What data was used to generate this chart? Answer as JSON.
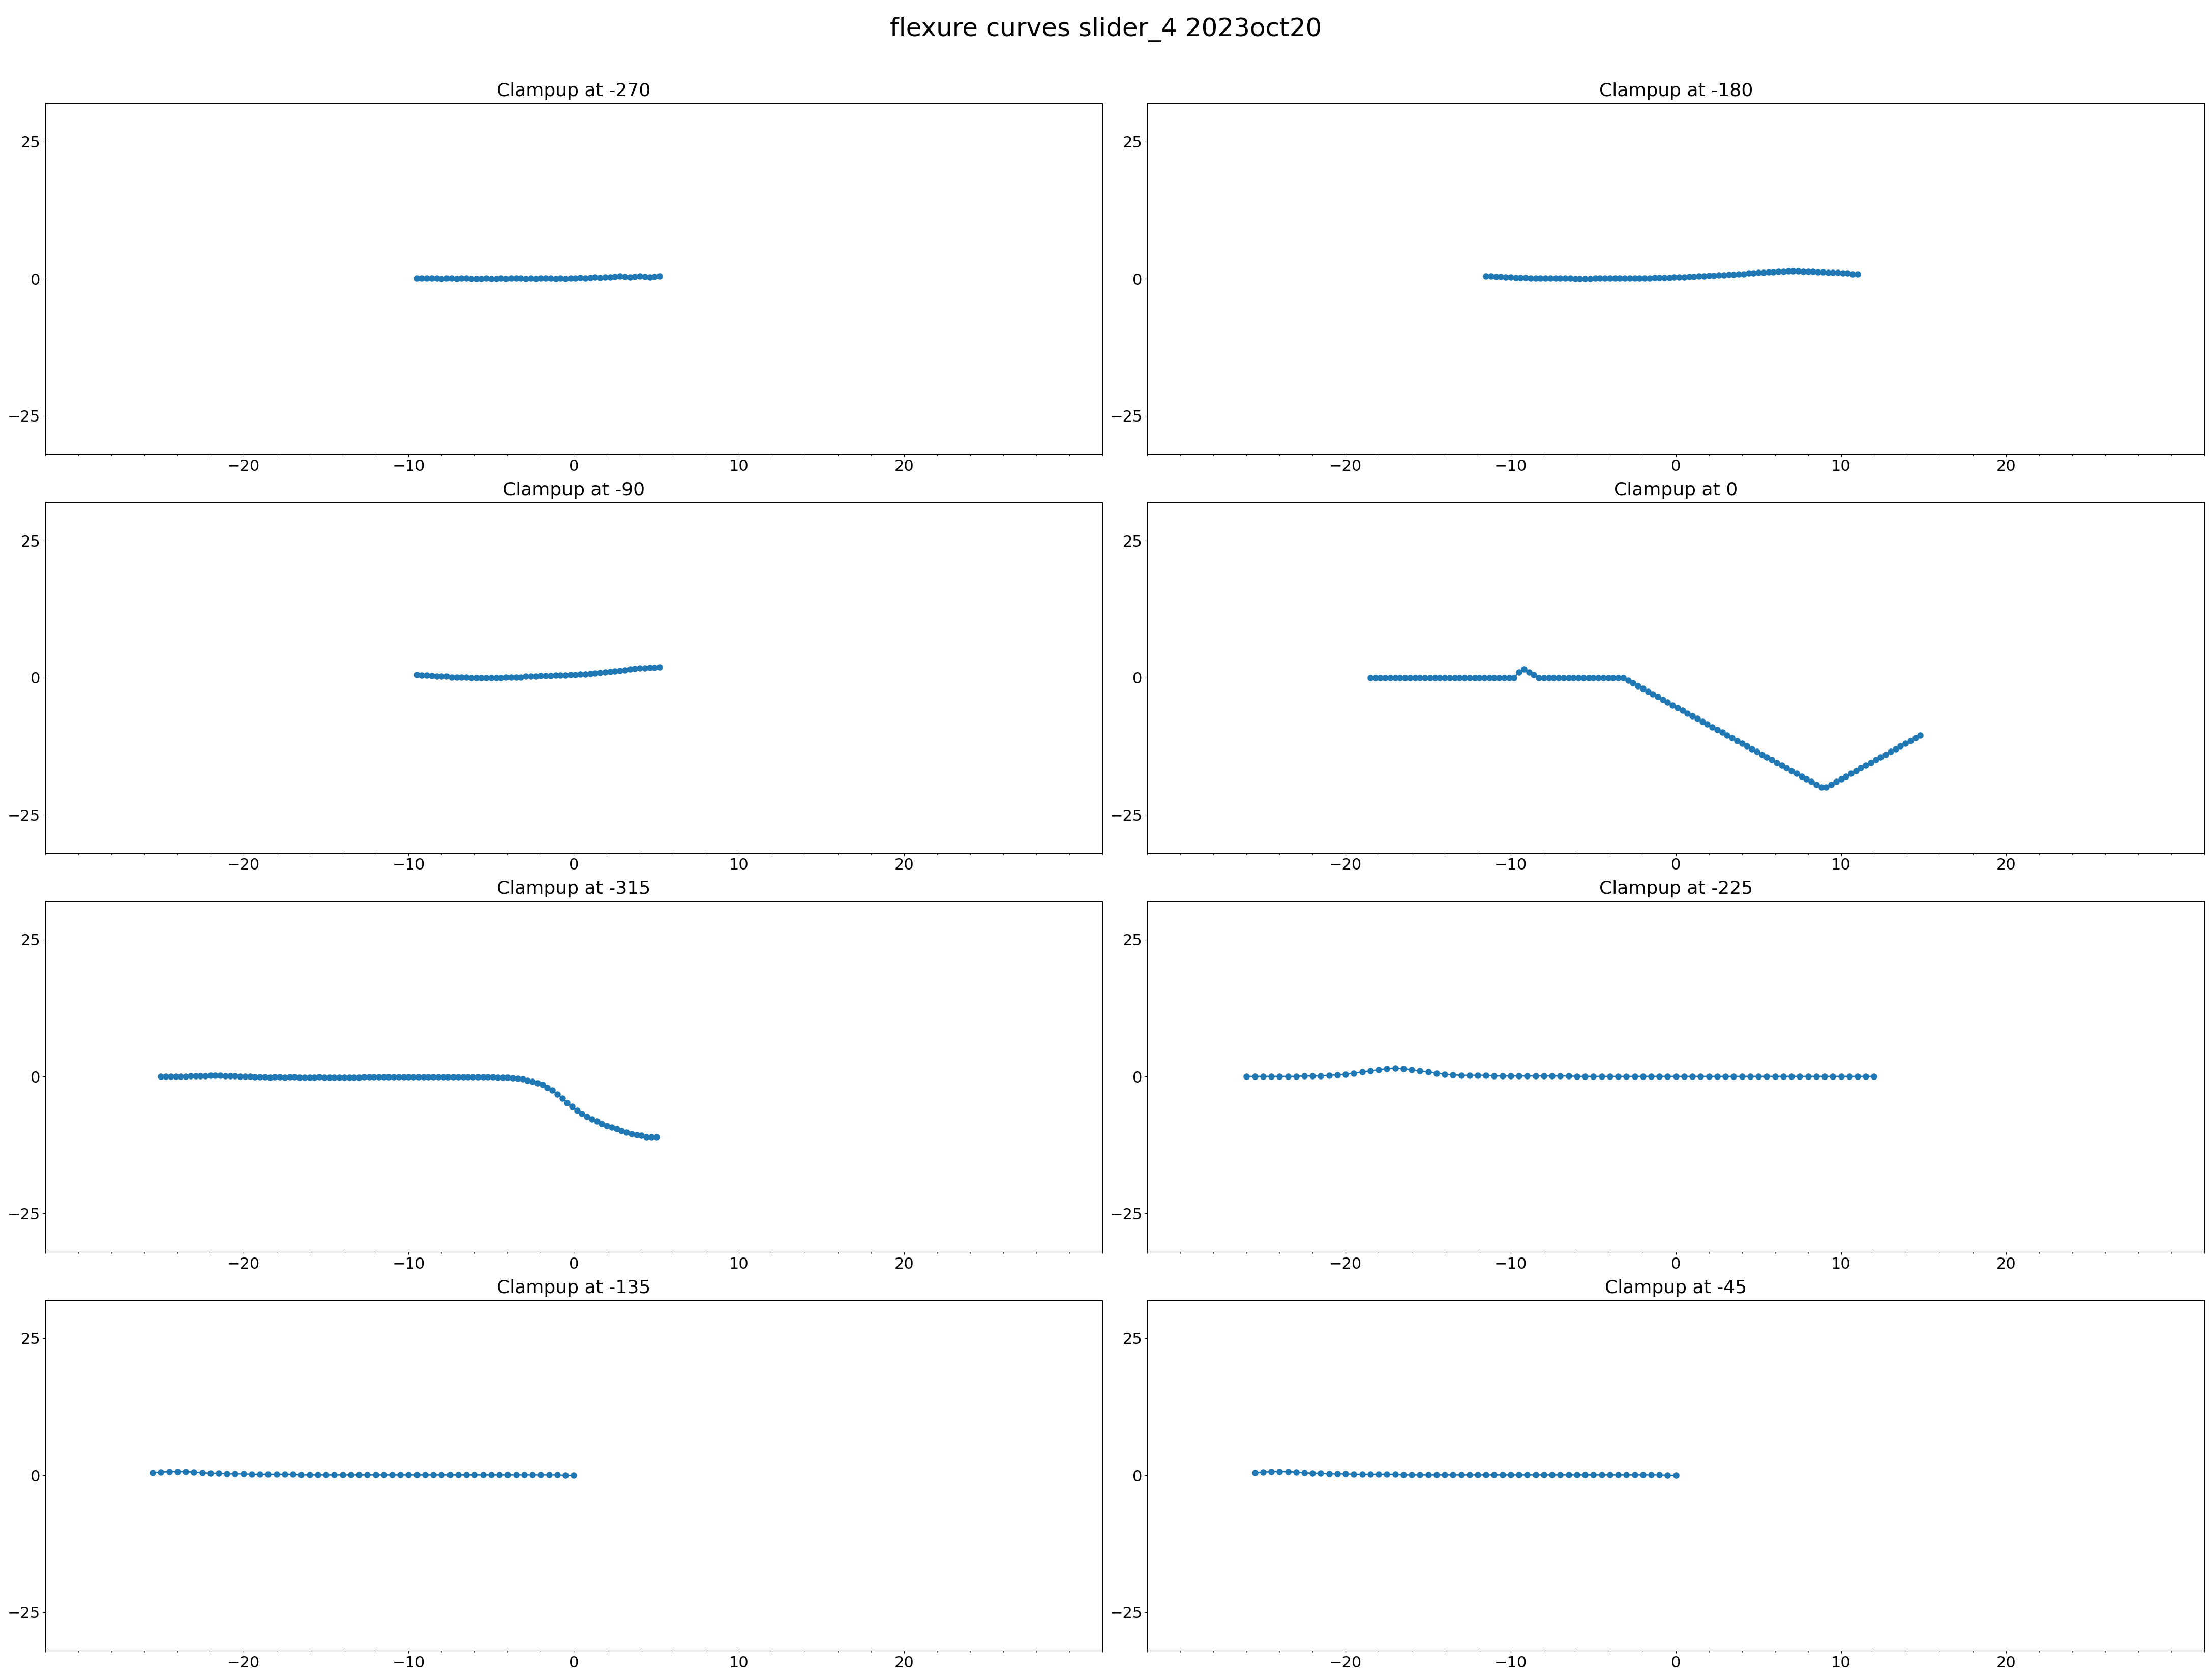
{
  "title": "flexure curves slider_4 2023oct20",
  "title_fontsize": 36,
  "subplot_title_fontsize": 26,
  "tick_fontsize": 22,
  "color": "#1f77b4",
  "xlim": [
    -32,
    32
  ],
  "ylim": [
    -32,
    32
  ],
  "xticks": [
    -20,
    -10,
    0,
    10,
    20
  ],
  "yticks": [
    -25,
    0,
    25
  ],
  "markersize": 8,
  "linewidth": 2.0,
  "subplots": [
    {
      "title": "Clampup at -270",
      "x": [
        -9.5,
        -9.2,
        -8.9,
        -8.6,
        -8.3,
        -8.0,
        -7.7,
        -7.4,
        -7.1,
        -6.8,
        -6.5,
        -6.2,
        -5.9,
        -5.6,
        -5.3,
        -5.0,
        -4.7,
        -4.4,
        -4.1,
        -3.8,
        -3.5,
        -3.2,
        -2.9,
        -2.6,
        -2.3,
        -2.0,
        -1.7,
        -1.4,
        -1.1,
        -0.8,
        -0.5,
        -0.2,
        0.1,
        0.4,
        0.7,
        1.0,
        1.3,
        1.6,
        1.9,
        2.2,
        2.5,
        2.8,
        3.1,
        3.4,
        3.7,
        4.0,
        4.3,
        4.6,
        4.9,
        5.2
      ],
      "y": [
        0.1,
        0.1,
        0.1,
        0.1,
        0.1,
        0.0,
        0.1,
        0.1,
        0.0,
        0.1,
        0.1,
        0.0,
        0.0,
        0.0,
        0.1,
        0.0,
        0.0,
        0.1,
        0.0,
        0.1,
        0.1,
        0.1,
        0.0,
        0.1,
        0.0,
        0.1,
        0.1,
        0.1,
        0.0,
        0.1,
        0.0,
        0.1,
        0.1,
        0.2,
        0.1,
        0.2,
        0.3,
        0.2,
        0.3,
        0.3,
        0.4,
        0.5,
        0.4,
        0.3,
        0.4,
        0.5,
        0.4,
        0.3,
        0.4,
        0.5
      ]
    },
    {
      "title": "Clampup at -180",
      "x": [
        -11.5,
        -11.2,
        -10.9,
        -10.6,
        -10.3,
        -10.0,
        -9.7,
        -9.4,
        -9.1,
        -8.8,
        -8.5,
        -8.2,
        -7.9,
        -7.6,
        -7.3,
        -7.0,
        -6.7,
        -6.4,
        -6.1,
        -5.8,
        -5.5,
        -5.2,
        -4.9,
        -4.6,
        -4.3,
        -4.0,
        -3.7,
        -3.4,
        -3.1,
        -2.8,
        -2.5,
        -2.2,
        -1.9,
        -1.6,
        -1.3,
        -1.0,
        -0.7,
        -0.4,
        -0.1,
        0.2,
        0.5,
        0.8,
        1.1,
        1.4,
        1.7,
        2.0,
        2.3,
        2.6,
        2.9,
        3.2,
        3.5,
        3.8,
        4.1,
        4.4,
        4.7,
        5.0,
        5.3,
        5.6,
        5.9,
        6.2,
        6.5,
        6.8,
        7.1,
        7.4,
        7.7,
        8.0,
        8.3,
        8.6,
        8.9,
        9.2,
        9.5,
        9.8,
        10.1,
        10.4,
        10.7,
        11.0
      ],
      "y": [
        0.5,
        0.5,
        0.4,
        0.4,
        0.3,
        0.3,
        0.2,
        0.2,
        0.2,
        0.1,
        0.1,
        0.1,
        0.1,
        0.1,
        0.1,
        0.1,
        0.1,
        0.1,
        0.0,
        0.0,
        0.0,
        0.0,
        0.1,
        0.1,
        0.1,
        0.1,
        0.1,
        0.1,
        0.1,
        0.1,
        0.1,
        0.1,
        0.1,
        0.1,
        0.2,
        0.2,
        0.2,
        0.2,
        0.3,
        0.3,
        0.3,
        0.4,
        0.4,
        0.5,
        0.5,
        0.6,
        0.6,
        0.7,
        0.7,
        0.8,
        0.8,
        0.9,
        0.9,
        1.0,
        1.0,
        1.1,
        1.1,
        1.2,
        1.2,
        1.3,
        1.3,
        1.4,
        1.4,
        1.4,
        1.3,
        1.3,
        1.3,
        1.2,
        1.2,
        1.1,
        1.1,
        1.1,
        1.0,
        1.0,
        0.9,
        0.9
      ]
    },
    {
      "title": "Clampup at -90",
      "x": [
        -9.5,
        -9.2,
        -8.9,
        -8.6,
        -8.3,
        -8.0,
        -7.7,
        -7.4,
        -7.1,
        -6.8,
        -6.5,
        -6.2,
        -5.9,
        -5.6,
        -5.3,
        -5.0,
        -4.7,
        -4.4,
        -4.1,
        -3.8,
        -3.5,
        -3.2,
        -2.9,
        -2.6,
        -2.3,
        -2.0,
        -1.7,
        -1.4,
        -1.1,
        -0.8,
        -0.5,
        -0.2,
        0.1,
        0.4,
        0.7,
        1.0,
        1.3,
        1.6,
        1.9,
        2.2,
        2.5,
        2.8,
        3.1,
        3.4,
        3.7,
        4.0,
        4.3,
        4.6,
        4.9,
        5.2
      ],
      "y": [
        0.5,
        0.4,
        0.4,
        0.3,
        0.2,
        0.2,
        0.2,
        0.1,
        0.1,
        0.1,
        0.1,
        0.0,
        0.0,
        0.0,
        0.0,
        0.0,
        0.0,
        0.0,
        0.1,
        0.1,
        0.1,
        0.1,
        0.2,
        0.2,
        0.2,
        0.3,
        0.3,
        0.3,
        0.4,
        0.4,
        0.4,
        0.5,
        0.5,
        0.6,
        0.6,
        0.7,
        0.8,
        0.9,
        1.0,
        1.1,
        1.2,
        1.3,
        1.4,
        1.5,
        1.6,
        1.7,
        1.7,
        1.8,
        1.8,
        1.9
      ]
    },
    {
      "title": "Clampup at 0",
      "x": [
        -18.5,
        -18.2,
        -17.9,
        -17.6,
        -17.3,
        -17.0,
        -16.7,
        -16.4,
        -16.1,
        -15.8,
        -15.5,
        -15.2,
        -14.9,
        -14.6,
        -14.3,
        -14.0,
        -13.7,
        -13.4,
        -13.1,
        -12.8,
        -12.5,
        -12.2,
        -11.9,
        -11.6,
        -11.3,
        -11.0,
        -10.7,
        -10.4,
        -10.1,
        -9.8,
        -9.5,
        -9.2,
        -8.9,
        -8.6,
        -8.3,
        -8.0,
        -7.7,
        -7.4,
        -7.1,
        -6.8,
        -6.5,
        -6.2,
        -5.9,
        -5.6,
        -5.3,
        -5.0,
        -4.7,
        -4.4,
        -4.1,
        -3.8,
        -3.5,
        -3.2,
        -2.9,
        -2.6,
        -2.3,
        -2.0,
        -1.7,
        -1.4,
        -1.1,
        -0.8,
        -0.5,
        -0.2,
        0.1,
        0.4,
        0.7,
        1.0,
        1.3,
        1.6,
        1.9,
        2.2,
        2.5,
        2.8,
        3.1,
        3.4,
        3.7,
        4.0,
        4.3,
        4.6,
        4.9,
        5.2,
        5.5,
        5.8,
        6.1,
        6.4,
        6.7,
        7.0,
        7.3,
        7.6,
        7.9,
        8.2,
        8.5,
        8.8,
        9.1,
        9.4,
        9.7,
        10.0,
        10.3,
        10.6,
        10.9,
        11.2,
        11.5,
        11.8,
        12.1,
        12.4,
        12.7,
        13.0,
        13.3,
        13.6,
        13.9,
        14.2,
        14.5,
        14.8
      ],
      "y": [
        0.0,
        0.0,
        0.0,
        0.0,
        0.0,
        0.0,
        0.0,
        0.0,
        0.0,
        0.0,
        0.0,
        0.0,
        0.0,
        0.0,
        0.0,
        0.0,
        0.0,
        0.0,
        0.0,
        0.0,
        0.0,
        0.0,
        0.0,
        0.0,
        0.0,
        0.0,
        0.0,
        0.0,
        0.0,
        0.0,
        1.0,
        1.5,
        1.0,
        0.5,
        0.0,
        0.0,
        0.0,
        0.0,
        0.0,
        0.0,
        0.0,
        0.0,
        0.0,
        0.0,
        0.0,
        0.0,
        0.0,
        0.0,
        0.0,
        0.0,
        0.0,
        0.0,
        -0.5,
        -1.0,
        -1.5,
        -2.0,
        -2.5,
        -3.0,
        -3.5,
        -4.0,
        -4.5,
        -5.0,
        -5.5,
        -6.0,
        -6.5,
        -7.0,
        -7.5,
        -8.0,
        -8.5,
        -9.0,
        -9.5,
        -10.0,
        -10.5,
        -11.0,
        -11.5,
        -12.0,
        -12.5,
        -13.0,
        -13.5,
        -14.0,
        -14.5,
        -15.0,
        -15.5,
        -16.0,
        -16.5,
        -17.0,
        -17.5,
        -18.0,
        -18.5,
        -19.0,
        -19.5,
        -20.0,
        -20.0,
        -19.5,
        -19.0,
        -18.5,
        -18.0,
        -17.5,
        -17.0,
        -16.5,
        -16.0,
        -15.5,
        -15.0,
        -14.5,
        -14.0,
        -13.5,
        -13.0,
        -12.5,
        -12.0,
        -11.5,
        -11.0,
        -10.5
      ]
    },
    {
      "title": "Clampup at -315",
      "x": [
        -25.0,
        -24.7,
        -24.4,
        -24.1,
        -23.8,
        -23.5,
        -23.2,
        -22.9,
        -22.6,
        -22.3,
        -22.0,
        -21.7,
        -21.4,
        -21.1,
        -20.8,
        -20.5,
        -20.2,
        -19.9,
        -19.6,
        -19.3,
        -19.0,
        -18.7,
        -18.4,
        -18.1,
        -17.8,
        -17.5,
        -17.2,
        -16.9,
        -16.6,
        -16.3,
        -16.0,
        -15.7,
        -15.4,
        -15.1,
        -14.8,
        -14.5,
        -14.2,
        -13.9,
        -13.6,
        -13.3,
        -13.0,
        -12.7,
        -12.4,
        -12.1,
        -11.8,
        -11.5,
        -11.2,
        -10.9,
        -10.6,
        -10.3,
        -10.0,
        -9.7,
        -9.4,
        -9.1,
        -8.8,
        -8.5,
        -8.2,
        -7.9,
        -7.6,
        -7.3,
        -7.0,
        -6.7,
        -6.4,
        -6.1,
        -5.8,
        -5.5,
        -5.2,
        -4.9,
        -4.6,
        -4.3,
        -4.0,
        -3.7,
        -3.4,
        -3.1,
        -2.8,
        -2.5,
        -2.2,
        -1.9,
        -1.6,
        -1.3,
        -1.0,
        -0.7,
        -0.4,
        -0.1,
        0.2,
        0.5,
        0.8,
        1.1,
        1.4,
        1.7,
        2.0,
        2.3,
        2.6,
        2.9,
        3.2,
        3.5,
        3.8,
        4.1,
        4.4,
        4.7,
        5.0
      ],
      "y": [
        0.0,
        0.0,
        0.0,
        0.0,
        0.0,
        0.0,
        0.1,
        0.1,
        0.1,
        0.1,
        0.2,
        0.2,
        0.2,
        0.1,
        0.1,
        0.1,
        0.0,
        0.0,
        0.0,
        -0.1,
        -0.1,
        -0.1,
        -0.2,
        -0.1,
        -0.1,
        -0.2,
        -0.1,
        -0.1,
        -0.2,
        -0.2,
        -0.2,
        -0.2,
        -0.1,
        -0.2,
        -0.2,
        -0.2,
        -0.2,
        -0.2,
        -0.2,
        -0.2,
        -0.2,
        -0.1,
        -0.1,
        -0.1,
        -0.1,
        -0.1,
        -0.1,
        -0.1,
        -0.1,
        -0.1,
        -0.1,
        -0.1,
        -0.1,
        -0.1,
        -0.1,
        -0.1,
        -0.1,
        -0.1,
        -0.1,
        -0.1,
        -0.1,
        -0.1,
        -0.1,
        -0.1,
        -0.1,
        -0.1,
        -0.1,
        -0.1,
        -0.2,
        -0.2,
        -0.2,
        -0.3,
        -0.4,
        -0.5,
        -0.7,
        -0.9,
        -1.2,
        -1.5,
        -2.0,
        -2.5,
        -3.2,
        -4.0,
        -4.8,
        -5.5,
        -6.2,
        -6.8,
        -7.3,
        -7.8,
        -8.2,
        -8.6,
        -9.0,
        -9.3,
        -9.6,
        -9.9,
        -10.2,
        -10.5,
        -10.7,
        -10.8,
        -11.0,
        -11.0,
        -11.0
      ]
    },
    {
      "title": "Clampup at -225",
      "x": [
        -26.0,
        -25.5,
        -25.0,
        -24.5,
        -24.0,
        -23.5,
        -23.0,
        -22.5,
        -22.0,
        -21.5,
        -21.0,
        -20.5,
        -20.0,
        -19.5,
        -19.0,
        -18.5,
        -18.0,
        -17.5,
        -17.0,
        -16.5,
        -16.0,
        -15.5,
        -15.0,
        -14.5,
        -14.0,
        -13.5,
        -13.0,
        -12.5,
        -12.0,
        -11.5,
        -11.0,
        -10.5,
        -10.0,
        -9.5,
        -9.0,
        -8.5,
        -8.0,
        -7.5,
        -7.0,
        -6.5,
        -6.0,
        -5.5,
        -5.0,
        -4.5,
        -4.0,
        -3.5,
        -3.0,
        -2.5,
        -2.0,
        -1.5,
        -1.0,
        -0.5,
        0.0,
        0.5,
        1.0,
        1.5,
        2.0,
        2.5,
        3.0,
        3.5,
        4.0,
        4.5,
        5.0,
        5.5,
        6.0,
        6.5,
        7.0,
        7.5,
        8.0,
        8.5,
        9.0,
        9.5,
        10.0,
        10.5,
        11.0,
        11.5,
        12.0
      ],
      "y": [
        0.0,
        0.0,
        0.0,
        0.0,
        0.0,
        0.0,
        0.0,
        0.1,
        0.1,
        0.1,
        0.2,
        0.3,
        0.4,
        0.6,
        0.8,
        1.0,
        1.2,
        1.4,
        1.5,
        1.4,
        1.2,
        1.0,
        0.8,
        0.6,
        0.4,
        0.3,
        0.2,
        0.2,
        0.2,
        0.2,
        0.1,
        0.1,
        0.1,
        0.1,
        0.1,
        0.1,
        0.1,
        0.1,
        0.1,
        0.1,
        0.0,
        0.0,
        0.0,
        0.0,
        0.0,
        0.0,
        0.0,
        0.0,
        0.0,
        0.0,
        0.0,
        0.0,
        0.0,
        0.0,
        0.0,
        0.0,
        0.0,
        0.0,
        0.0,
        0.0,
        0.0,
        0.0,
        0.0,
        0.0,
        0.0,
        0.0,
        0.0,
        0.0,
        0.0,
        0.0,
        0.0,
        0.0,
        0.0,
        0.0,
        0.0,
        0.0,
        0.0
      ]
    },
    {
      "title": "Clampup at -135",
      "x": [
        -25.5,
        -25.0,
        -24.5,
        -24.0,
        -23.5,
        -23.0,
        -22.5,
        -22.0,
        -21.5,
        -21.0,
        -20.5,
        -20.0,
        -19.5,
        -19.0,
        -18.5,
        -18.0,
        -17.5,
        -17.0,
        -16.5,
        -16.0,
        -15.5,
        -15.0,
        -14.5,
        -14.0,
        -13.5,
        -13.0,
        -12.5,
        -12.0,
        -11.5,
        -11.0,
        -10.5,
        -10.0,
        -9.5,
        -9.0,
        -8.5,
        -8.0,
        -7.5,
        -7.0,
        -6.5,
        -6.0,
        -5.5,
        -5.0,
        -4.5,
        -4.0,
        -3.5,
        -3.0,
        -2.5,
        -2.0,
        -1.5,
        -1.0,
        -0.5,
        0.0
      ],
      "y": [
        0.5,
        0.6,
        0.7,
        0.7,
        0.7,
        0.6,
        0.5,
        0.4,
        0.4,
        0.3,
        0.3,
        0.3,
        0.2,
        0.2,
        0.2,
        0.2,
        0.2,
        0.2,
        0.1,
        0.1,
        0.1,
        0.1,
        0.1,
        0.1,
        0.1,
        0.1,
        0.1,
        0.1,
        0.1,
        0.1,
        0.1,
        0.1,
        0.1,
        0.1,
        0.1,
        0.1,
        0.1,
        0.1,
        0.1,
        0.1,
        0.1,
        0.1,
        0.1,
        0.1,
        0.1,
        0.1,
        0.1,
        0.1,
        0.1,
        0.1,
        0.0,
        0.0
      ]
    },
    {
      "title": "Clampup at -45",
      "x": [
        -25.5,
        -25.0,
        -24.5,
        -24.0,
        -23.5,
        -23.0,
        -22.5,
        -22.0,
        -21.5,
        -21.0,
        -20.5,
        -20.0,
        -19.5,
        -19.0,
        -18.5,
        -18.0,
        -17.5,
        -17.0,
        -16.5,
        -16.0,
        -15.5,
        -15.0,
        -14.5,
        -14.0,
        -13.5,
        -13.0,
        -12.5,
        -12.0,
        -11.5,
        -11.0,
        -10.5,
        -10.0,
        -9.5,
        -9.0,
        -8.5,
        -8.0,
        -7.5,
        -7.0,
        -6.5,
        -6.0,
        -5.5,
        -5.0,
        -4.5,
        -4.0,
        -3.5,
        -3.0,
        -2.5,
        -2.0,
        -1.5,
        -1.0,
        -0.5,
        0.0
      ],
      "y": [
        0.5,
        0.6,
        0.7,
        0.7,
        0.7,
        0.6,
        0.5,
        0.4,
        0.4,
        0.3,
        0.3,
        0.3,
        0.2,
        0.2,
        0.2,
        0.2,
        0.2,
        0.2,
        0.1,
        0.1,
        0.1,
        0.1,
        0.1,
        0.1,
        0.1,
        0.1,
        0.1,
        0.1,
        0.1,
        0.1,
        0.1,
        0.1,
        0.1,
        0.1,
        0.1,
        0.1,
        0.1,
        0.1,
        0.1,
        0.1,
        0.1,
        0.1,
        0.1,
        0.1,
        0.1,
        0.1,
        0.1,
        0.1,
        0.1,
        0.1,
        0.0,
        0.0
      ]
    }
  ]
}
